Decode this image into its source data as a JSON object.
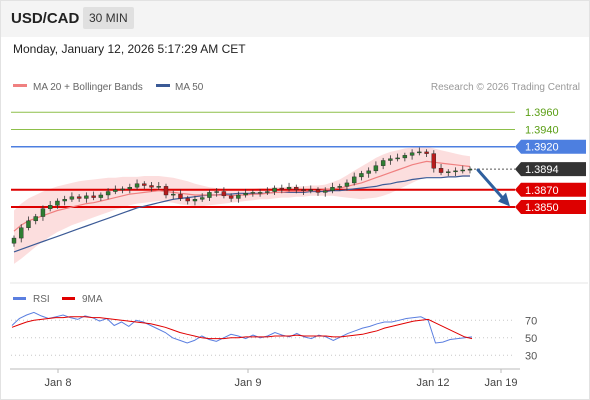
{
  "header": {
    "symbol": "USD/CAD",
    "timeframe": "30 MIN",
    "datetime": "Monday, January 12, 2026 5:17:29 AM CET"
  },
  "colors": {
    "ma20": "#f08080",
    "bollinger_fill": "#fbd8d8",
    "ma50": "#3b5a96",
    "candle_up": "#2e7d32",
    "candle_down": "#b71c1c",
    "support": "#dd0000",
    "resistance_green": "#8dbf4a",
    "resistance_blue": "#4d7fe0",
    "current": "#333333",
    "arrow": "#2f5f9e",
    "rsi": "#5b7fe0",
    "rsi_ma": "#e00000"
  },
  "chart_data": [
    {
      "type": "candlestick",
      "title": "",
      "legend": {
        "placement": "top-left",
        "items": [
          "MA 20 + Bollinger Bands",
          "MA 50"
        ]
      },
      "credit": "Research © 2026 Trading Central",
      "x_tick_labels": [
        "Jan 8",
        "Jan 9",
        "Jan 12",
        "Jan 19"
      ],
      "ylim": [
        1.377,
        1.398
      ],
      "levels": [
        {
          "value": 1.396,
          "label": "1.3960",
          "kind": "resistance-green"
        },
        {
          "value": 1.394,
          "label": "1.3940",
          "kind": "resistance-green"
        },
        {
          "value": 1.392,
          "label": "1.3920",
          "kind": "resistance-blue"
        },
        {
          "value": 1.3894,
          "label": "1.3894",
          "kind": "current"
        },
        {
          "value": 1.387,
          "label": "1.3870",
          "kind": "support"
        },
        {
          "value": 1.385,
          "label": "1.3850",
          "kind": "support"
        }
      ],
      "forecast_arrow": {
        "from": 1.3893,
        "to": 1.3853
      },
      "close_series": [
        1.3814,
        1.3826,
        1.3834,
        1.3839,
        1.3848,
        1.3852,
        1.3857,
        1.3859,
        1.3862,
        1.386,
        1.3863,
        1.3861,
        1.3864,
        1.3868,
        1.387,
        1.3871,
        1.3873,
        1.3877,
        1.3875,
        1.3873,
        1.3874,
        1.3864,
        1.3865,
        1.386,
        1.3857,
        1.3859,
        1.3861,
        1.3867,
        1.3868,
        1.3863,
        1.386,
        1.3864,
        1.3866,
        1.3867,
        1.3867,
        1.3868,
        1.3872,
        1.3871,
        1.3873,
        1.387,
        1.3869,
        1.387,
        1.3867,
        1.3869,
        1.3873,
        1.3874,
        1.3878,
        1.3885,
        1.3889,
        1.3892,
        1.3898,
        1.3904,
        1.3906,
        1.3907,
        1.391,
        1.3913,
        1.3914,
        1.3912,
        1.3895,
        1.389,
        1.3891,
        1.3892,
        1.3893,
        1.3894
      ],
      "ma20_series": [
        1.3822,
        1.3829,
        1.3834,
        1.3837,
        1.384,
        1.3843,
        1.3846,
        1.3848,
        1.385,
        1.3852,
        1.3854,
        1.3855,
        1.3857,
        1.3859,
        1.3861,
        1.3863,
        1.3865,
        1.3866,
        1.3867,
        1.3868,
        1.3869,
        1.3868,
        1.3867,
        1.3866,
        1.3865,
        1.3864,
        1.3864,
        1.3864,
        1.3864,
        1.3864,
        1.3863,
        1.3864,
        1.3864,
        1.3865,
        1.3865,
        1.3866,
        1.3867,
        1.3867,
        1.3868,
        1.3868,
        1.3868,
        1.3869,
        1.3869,
        1.387,
        1.3871,
        1.3872,
        1.3874,
        1.3876,
        1.3878,
        1.3881,
        1.3884,
        1.3887,
        1.389,
        1.3893,
        1.3896,
        1.3899,
        1.3901,
        1.3903,
        1.3902,
        1.3901,
        1.39,
        1.3899,
        1.3898,
        1.3897
      ],
      "ma50_series": [
        1.3798,
        1.3801,
        1.3804,
        1.3807,
        1.381,
        1.3813,
        1.3816,
        1.3819,
        1.3822,
        1.3825,
        1.3828,
        1.3831,
        1.3834,
        1.3837,
        1.384,
        1.3843,
        1.3846,
        1.3849,
        1.3851,
        1.3853,
        1.3855,
        1.3857,
        1.3859,
        1.386,
        1.3861,
        1.3862,
        1.3863,
        1.3864,
        1.3864,
        1.3865,
        1.3865,
        1.3866,
        1.3866,
        1.3866,
        1.3866,
        1.3866,
        1.3867,
        1.3867,
        1.3867,
        1.3867,
        1.3867,
        1.3868,
        1.3868,
        1.3868,
        1.3869,
        1.3869,
        1.387,
        1.3871,
        1.3872,
        1.3873,
        1.3874,
        1.3876,
        1.3877,
        1.3879,
        1.388,
        1.3882,
        1.3883,
        1.3884,
        1.3884,
        1.3884,
        1.3885,
        1.3885,
        1.3886,
        1.3886
      ],
      "bollinger_upper": [
        1.3846,
        1.3854,
        1.386,
        1.3864,
        1.3868,
        1.3871,
        1.3874,
        1.3876,
        1.3878,
        1.388,
        1.3881,
        1.3882,
        1.3883,
        1.3884,
        1.3884,
        1.3885,
        1.3885,
        1.3885,
        1.3886,
        1.3886,
        1.3886,
        1.3885,
        1.3884,
        1.3882,
        1.388,
        1.3877,
        1.3875,
        1.3873,
        1.3872,
        1.3871,
        1.387,
        1.387,
        1.3871,
        1.3871,
        1.3872,
        1.3872,
        1.3873,
        1.3873,
        1.3874,
        1.3874,
        1.3874,
        1.3875,
        1.3875,
        1.3876,
        1.3879,
        1.3882,
        1.3887,
        1.3892,
        1.3897,
        1.3902,
        1.3907,
        1.3911,
        1.3914,
        1.3916,
        1.3918,
        1.3919,
        1.392,
        1.392,
        1.3918,
        1.3916,
        1.3914,
        1.3912,
        1.391,
        1.3909
      ],
      "bollinger_lower": [
        1.3784,
        1.379,
        1.3797,
        1.3804,
        1.381,
        1.3816,
        1.3821,
        1.3825,
        1.3829,
        1.3832,
        1.3835,
        1.3838,
        1.3841,
        1.3844,
        1.3847,
        1.3849,
        1.3852,
        1.3854,
        1.3855,
        1.3856,
        1.3857,
        1.3856,
        1.3855,
        1.3853,
        1.3852,
        1.3851,
        1.3851,
        1.3852,
        1.3853,
        1.3854,
        1.3855,
        1.3856,
        1.3857,
        1.3858,
        1.3859,
        1.3859,
        1.386,
        1.3861,
        1.3861,
        1.3862,
        1.3862,
        1.3863,
        1.3863,
        1.3863,
        1.3863,
        1.3862,
        1.3861,
        1.386,
        1.3859,
        1.386,
        1.3861,
        1.3863,
        1.3866,
        1.387,
        1.3874,
        1.3878,
        1.3882,
        1.3885,
        1.3885,
        1.3885,
        1.3885,
        1.3885,
        1.3885,
        1.3885
      ]
    },
    {
      "type": "line",
      "title": "",
      "legend": {
        "placement": "top-left",
        "items": [
          "RSI",
          "9MA"
        ]
      },
      "yticks": [
        "70",
        "50",
        "30"
      ],
      "ylim": [
        20,
        84
      ],
      "series": [
        {
          "name": "RSI",
          "values": [
            64,
            72,
            76,
            79,
            75,
            72,
            74,
            76,
            73,
            71,
            75,
            73,
            69,
            72,
            64,
            68,
            63,
            70,
            68,
            64,
            60,
            56,
            50,
            47,
            44,
            47,
            52,
            48,
            46,
            50,
            54,
            52,
            49,
            53,
            50,
            52,
            56,
            53,
            51,
            55,
            51,
            49,
            53,
            51,
            47,
            51,
            55,
            58,
            61,
            63,
            66,
            68,
            68,
            70,
            72,
            73,
            74,
            70,
            44,
            45,
            48,
            49,
            50,
            51
          ]
        },
        {
          "name": "9MA",
          "values": [
            62,
            65,
            68,
            70,
            71,
            72,
            73,
            73,
            74,
            74,
            74,
            73,
            73,
            72,
            71,
            70,
            69,
            68,
            67,
            66,
            64,
            62,
            59,
            56,
            54,
            52,
            50,
            49,
            49,
            49,
            50,
            50,
            51,
            51,
            51,
            51,
            52,
            52,
            52,
            53,
            52,
            52,
            52,
            52,
            51,
            51,
            52,
            53,
            54,
            56,
            58,
            61,
            63,
            65,
            67,
            69,
            70,
            71,
            67,
            63,
            59,
            55,
            51,
            49
          ]
        }
      ]
    }
  ]
}
